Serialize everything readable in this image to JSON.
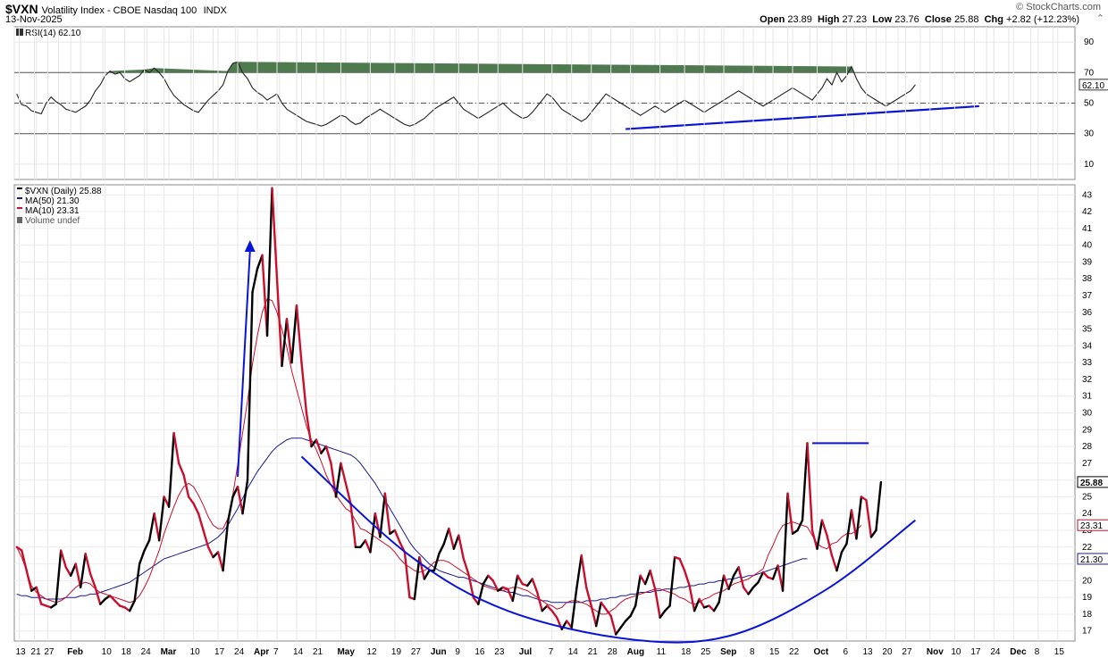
{
  "header": {
    "symbol": "$VXN",
    "description": "Volatility Index - CBOE Nasdaq 100",
    "exchange": "INDX",
    "date": "13-Nov-2025",
    "brand": "© StockCharts.com",
    "open_label": "Open",
    "open": "23.89",
    "high_label": "High",
    "high": "27.23",
    "low_label": "Low",
    "low": "23.76",
    "close_label": "Close",
    "close": "25.88",
    "chg_label": "Chg",
    "chg": "+2.82 (+12.23%)"
  },
  "colors": {
    "price": "#000000",
    "ma50": "#1a1a8c",
    "ma10": "#c8102e",
    "trend": "#0a14d6",
    "rsi": "#222222",
    "overbought_fill": "#4f7a4f"
  },
  "chart_data": [
    {
      "type": "line",
      "name": "rsi-panel",
      "legend": "RSI(14) 62.10",
      "ylim": [
        0,
        100
      ],
      "yticks": [
        10,
        30,
        50,
        70,
        90
      ],
      "reference_lines": [
        30,
        50,
        70
      ],
      "last_value_label": "62.10",
      "values": [
        56,
        49,
        48,
        45,
        44,
        43,
        50,
        54,
        51,
        49,
        46,
        45,
        44,
        46,
        48,
        52,
        58,
        62,
        68,
        71,
        69,
        70,
        66,
        64,
        66,
        68,
        72,
        70,
        73,
        70,
        66,
        60,
        55,
        52,
        49,
        47,
        45,
        44,
        48,
        52,
        55,
        58,
        62,
        71,
        76,
        77,
        70,
        66,
        60,
        57,
        55,
        52,
        54,
        56,
        50,
        46,
        44,
        42,
        40,
        38,
        37,
        36,
        35,
        36,
        38,
        40,
        42,
        41,
        38,
        36,
        37,
        40,
        42,
        44,
        46,
        44,
        42,
        40,
        38,
        36,
        35,
        36,
        38,
        40,
        43,
        46,
        48,
        50,
        52,
        54,
        50,
        46,
        44,
        42,
        40,
        42,
        44,
        46,
        48,
        50,
        47,
        44,
        42,
        40,
        41,
        44,
        48,
        52,
        56,
        54,
        50,
        46,
        44,
        42,
        40,
        38,
        40,
        44,
        48,
        52,
        56,
        54,
        52,
        50,
        48,
        46,
        44,
        42,
        44,
        46,
        48,
        46,
        44,
        46,
        48,
        50,
        52,
        50,
        48,
        46,
        44,
        46,
        48,
        50,
        52,
        54,
        56,
        58,
        56,
        54,
        52,
        50,
        48,
        50,
        52,
        54,
        56,
        58,
        60,
        58,
        56,
        54,
        52,
        56,
        60,
        66,
        62,
        70,
        64,
        68,
        74,
        66,
        60,
        56,
        54,
        52,
        50,
        48,
        50,
        52,
        54,
        56,
        58,
        62
      ],
      "trendline": {
        "from_index": 124,
        "from_value": 33,
        "to_index": 196,
        "to_value": 48
      }
    },
    {
      "type": "line",
      "name": "price-panel",
      "title": "$VXN (Daily) 25.88",
      "legend": [
        {
          "label": "$VXN (Daily) 25.88",
          "color": "#000000"
        },
        {
          "label": "MA(50) 21.30",
          "color": "#1a1a8c"
        },
        {
          "label": "MA(10) 23.31",
          "color": "#c8102e"
        },
        {
          "label": "Volume undef",
          "color": "#666666"
        }
      ],
      "ylim": [
        16.4,
        43.6
      ],
      "yticks": [
        17,
        18,
        19,
        20,
        21,
        22,
        23,
        24,
        25,
        26,
        27,
        28,
        29,
        30,
        31,
        32,
        33,
        34,
        35,
        36,
        37,
        38,
        39,
        40,
        41,
        42,
        43
      ],
      "ytick_labels": [
        "17",
        "18",
        "19",
        "20",
        "22",
        "23",
        "24",
        "25",
        "26",
        "27",
        "28",
        "29",
        "30",
        "31",
        "32",
        "33",
        "34",
        "35",
        "36",
        "37",
        "38",
        "39",
        "40",
        "41",
        "42",
        "43"
      ],
      "last_labels": [
        {
          "value": 25.88,
          "label": "25.88"
        },
        {
          "value": 23.31,
          "label": "23.31"
        },
        {
          "value": 21.3,
          "label": "21.30"
        }
      ],
      "x_labels": [
        "13",
        "21",
        "27",
        "Feb",
        "10",
        "18",
        "24",
        "Mar",
        "10",
        "17",
        "24",
        "Apr",
        "7",
        "14",
        "21",
        "May",
        "12",
        "19",
        "27",
        "Jun",
        "9",
        "16",
        "23",
        "Jul",
        "7",
        "14",
        "21",
        "28",
        "Aug",
        "11",
        "18",
        "25",
        "Sep",
        "8",
        "15",
        "22",
        "Oct",
        "6",
        "13",
        "20",
        "27",
        "Nov",
        "10",
        "17",
        "24",
        "Dec",
        "8",
        "15"
      ],
      "x_label_positions": [
        0.5,
        3.6,
        6.3,
        11,
        18,
        22,
        26,
        30,
        36,
        41,
        45,
        49,
        53,
        57,
        61,
        66,
        72,
        77,
        81,
        85,
        90,
        94,
        98,
        103,
        109,
        113,
        117,
        121,
        125,
        131,
        136,
        140,
        144,
        150,
        154,
        158,
        163,
        169,
        173,
        177,
        181,
        186,
        191,
        195,
        199,
        203,
        208,
        212
      ],
      "close": [
        22,
        21.8,
        20.6,
        19.4,
        19.6,
        18.6,
        18.5,
        18.4,
        18.6,
        21.8,
        20.8,
        20.3,
        21,
        19.6,
        21.6,
        20.4,
        19.6,
        18.6,
        18.9,
        19.1,
        18.8,
        18.5,
        18.4,
        18.2,
        18.8,
        21,
        21.8,
        22.4,
        24,
        22.4,
        25,
        24.4,
        28.8,
        27,
        26.3,
        25,
        24.6,
        24,
        23,
        22,
        21.4,
        21.7,
        20.6,
        23.5,
        25,
        25.6,
        24,
        26,
        37.2,
        38.6,
        39.4,
        34.6,
        43.4,
        38,
        32.8,
        35.6,
        33,
        36.4,
        33,
        30,
        28,
        28.4,
        27.6,
        28,
        27,
        25,
        27,
        25.8,
        24.6,
        22,
        22,
        22.4,
        21.7,
        24,
        22.6,
        25.2,
        22.8,
        23,
        22.3,
        21.7,
        19,
        18.9,
        21.4,
        20.1,
        20.6,
        20.6,
        21.6,
        22.2,
        23.1,
        21.9,
        22.7,
        21.3,
        20.4,
        19,
        18.6,
        19.8,
        20.3,
        20,
        19.4,
        19.6,
        19.5,
        18.8,
        20.3,
        19.8,
        19.7,
        20.1,
        19.3,
        18.2,
        18.5,
        18.2,
        17.8,
        17.1,
        17.6,
        17.2,
        19.5,
        21.5,
        19.6,
        18.5,
        17.3,
        18.7,
        18.3,
        17.9,
        16.8,
        17.2,
        17.6,
        17.9,
        18.5,
        20.3,
        19.8,
        20.6,
        19.5,
        17.8,
        18.2,
        18.5,
        21.4,
        21.3,
        20.6,
        19.7,
        18.2,
        18.9,
        18.4,
        18.5,
        18.2,
        18.7,
        20.3,
        19.5,
        20.3,
        20.8,
        19.6,
        19.2,
        19.6,
        19.9,
        20.5,
        20.2,
        20.1,
        20.9,
        19.4,
        25.2,
        22.8,
        23,
        23.6,
        28.2,
        23,
        21.9,
        23.6,
        22.7,
        21.5,
        20.6,
        21.7,
        22.2,
        24.2,
        22.5,
        25,
        24.8,
        22.6,
        23,
        25.88
      ],
      "ma10": [
        22,
        21.4,
        20.6,
        19.7,
        19.3,
        19.1,
        18.9,
        18.8,
        18.7,
        18.8,
        19,
        19.3,
        19.6,
        19.8,
        19.9,
        19.8,
        19.5,
        19.3,
        19.2,
        19.1,
        19,
        18.9,
        18.8,
        18.7,
        18.8,
        19.1,
        19.6,
        20.2,
        21,
        21.8,
        22.8,
        23.6,
        24.4,
        25.1,
        25.6,
        25.8,
        25.6,
        25.1,
        24.5,
        23.8,
        23.3,
        23.1,
        23.1,
        23.7,
        25.1,
        26.9,
        28.8,
        30.7,
        32.9,
        34.6,
        36,
        36.8,
        36.7,
        36,
        35,
        33.9,
        32.5,
        31.4,
        30.3,
        29.2,
        28.4,
        27.8,
        27.1,
        26.3,
        25.7,
        25.1,
        24.7,
        24.3,
        24.1,
        23.6,
        23.1,
        23,
        22.8,
        22.6,
        22.4,
        22.2,
        22,
        21.7,
        21.3,
        21,
        20.8,
        20.6,
        20.5,
        20.6,
        20.8,
        21.1,
        21.2,
        21.2,
        21.1,
        20.9,
        20.7,
        20.5,
        20.3,
        20.1,
        19.9,
        19.7,
        19.6,
        19.5,
        19.4,
        19.4,
        19.5,
        19.6,
        19.6,
        19.5,
        19.4,
        19.2,
        19,
        18.8,
        18.6,
        18.5,
        18.3,
        18.4,
        18.7,
        18.8,
        18.8,
        18.7,
        18.6,
        18.4,
        18.2,
        18,
        18,
        18.2,
        18.4,
        18.7,
        18.9,
        19,
        19.1,
        19.2,
        19.3,
        19.4,
        19.5,
        19.5,
        19.4,
        19.3,
        19.2,
        19,
        18.9,
        18.7,
        18.6,
        18.7,
        18.9,
        19,
        19.2,
        19.3,
        19.4,
        19.6,
        19.8,
        19.9,
        20,
        20.1,
        20.3,
        20.5,
        20.7,
        21.5,
        22.1,
        22.8,
        23.3,
        23.4,
        23.5,
        23.4,
        23.3,
        23.2,
        22.7,
        22.2,
        22,
        21.9,
        22.2,
        22.3,
        22.6,
        22.8,
        22.8,
        23,
        23.31
      ],
      "ma50": [
        19.2,
        19.1,
        19.1,
        19,
        19,
        19,
        18.9,
        18.9,
        18.9,
        18.9,
        19,
        19,
        19,
        19.1,
        19.1,
        19.2,
        19.2,
        19.3,
        19.4,
        19.5,
        19.6,
        19.7,
        19.8,
        19.9,
        20.1,
        20.3,
        20.5,
        20.7,
        20.9,
        21.1,
        21.3,
        21.4,
        21.5,
        21.6,
        21.7,
        21.8,
        21.9,
        22,
        22.1,
        22.2,
        22.4,
        22.6,
        22.9,
        23.3,
        23.8,
        24.3,
        24.9,
        25.5,
        26,
        26.5,
        26.9,
        27.3,
        27.7,
        28,
        28.2,
        28.4,
        28.5,
        28.5,
        28.5,
        28.4,
        28.3,
        28.2,
        28.1,
        28,
        27.9,
        27.8,
        27.7,
        27.6,
        27.5,
        27.3,
        27,
        26.6,
        26.2,
        25.8,
        25.3,
        24.8,
        24.3,
        23.8,
        23.3,
        22.8,
        22.3,
        21.9,
        21.6,
        21.3,
        21,
        20.8,
        20.6,
        20.5,
        20.4,
        20.3,
        20.2,
        20.2,
        20.1,
        20,
        19.9,
        19.8,
        19.7,
        19.6,
        19.5,
        19.4,
        19.3,
        19.3,
        19.2,
        19.1,
        19.1,
        19,
        18.9,
        18.8,
        18.8,
        18.7,
        18.7,
        18.7,
        18.7,
        18.7,
        18.7,
        18.7,
        18.8,
        18.8,
        18.8,
        18.9,
        18.9,
        19,
        19,
        19.1,
        19.1,
        19.2,
        19.2,
        19.3,
        19.3,
        19.3,
        19.4,
        19.4,
        19.5,
        19.5,
        19.5,
        19.6,
        19.6,
        19.7,
        19.7,
        19.8,
        19.8,
        19.9,
        19.9,
        20,
        20,
        20.1,
        20.1,
        20.2,
        20.2,
        20.3,
        20.3,
        20.4,
        20.5,
        20.6,
        20.7,
        20.8,
        20.9,
        21,
        21.1,
        21.2,
        21.3,
        21.3
      ],
      "annotations": [
        {
          "type": "arrow",
          "from_index": 45,
          "from_value": 26.2,
          "to_index": 47.5,
          "to_value": 40.3
        },
        {
          "type": "horizontal",
          "from_index": 162,
          "to_index": 173.5,
          "value": 28.2
        },
        {
          "type": "curve",
          "points": [
            [
              58,
              27.4
            ],
            [
              80,
              21.5
            ],
            [
              100,
              18.2
            ],
            [
              125,
              16.5
            ],
            [
              145,
              16.7
            ],
            [
              165,
              19.5
            ],
            [
              183,
              23.6
            ]
          ]
        },
        {
          "type": "trendline",
          "from_index": 183,
          "from_value": 23.6,
          "to_index": 183.5,
          "to_value": 23.7
        }
      ]
    }
  ]
}
